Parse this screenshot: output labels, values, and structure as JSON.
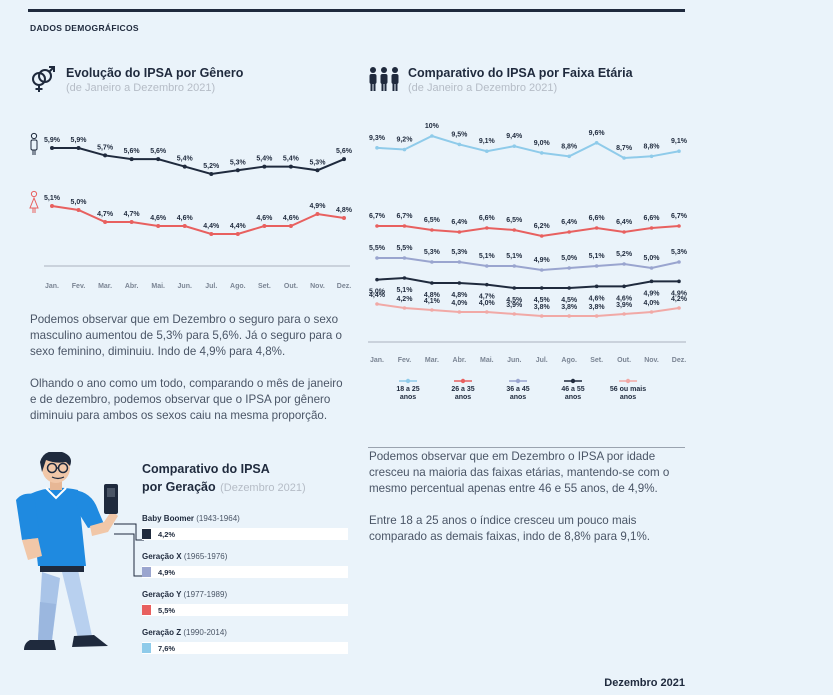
{
  "section_label": "DADOS DEMOGRÁFICOS",
  "footer_date": "Dezembro 2021",
  "gender_panel": {
    "title": "Evolução do IPSA por Gênero",
    "subtitle": "(de Janeiro a Dezembro 2021)",
    "paragraph1": "Podemos observar que em Dezembro o seguro para o sexo masculino aumentou de 5,3% para 5,6%. Já o seguro para o sexo feminino, diminuiu. Indo de 4,9% para 4,8%.",
    "paragraph2": "Olhando o ano como um todo, comparando o mês de janeiro e de dezembro, podemos observar que o IPSA por gênero diminuiu para ambos os sexos caiu na mesma proporção."
  },
  "age_panel": {
    "title": "Comparativo do IPSA por Faixa Etária",
    "subtitle": "(de Janeiro a Dezembro 2021)",
    "paragraph1": "Podemos observar que em Dezembro o IPSA por idade cresceu na maioria das faixas etárias, mantendo-se com o mesmo percentual apenas entre 46 e 55 anos, de 4,9%.",
    "paragraph2": "Entre 18 a 25 anos o índice cresceu um pouco mais comparado as demais faixas, indo de 8,8% para 9,1%."
  },
  "generation_panel": {
    "title_line1": "Comparativo do IPSA",
    "title_line2": "por Geração",
    "subtitle": "(Dezembro 2021)"
  },
  "colors": {
    "male": "#1f2a3d",
    "female": "#e8605f",
    "age_18_25": "#8fcbea",
    "age_26_35": "#e8605f",
    "age_36_45": "#9aa5cf",
    "age_46_55": "#1f2a3d",
    "age_56_plus": "#f1a9a6"
  },
  "chart_data": [
    {
      "type": "line",
      "title": "Evolução do IPSA por Gênero",
      "subtitle": "(de Janeiro a Dezembro 2021)",
      "categories": [
        "Jan.",
        "Fev.",
        "Mar.",
        "Abr.",
        "Mai.",
        "Jun.",
        "Jul.",
        "Ago.",
        "Set.",
        "Out.",
        "Nov.",
        "Dez."
      ],
      "series": [
        {
          "key": "male",
          "icon": "male-person-icon",
          "color": "#1f2a3d",
          "values": [
            5.9,
            5.9,
            5.7,
            5.6,
            5.6,
            5.4,
            5.2,
            5.3,
            5.4,
            5.4,
            5.3,
            5.6
          ],
          "labels": [
            "5,9%",
            "5,9%",
            "5,7%",
            "5,6%",
            "5,6%",
            "5,4%",
            "5,2%",
            "5,3%",
            "5,4%",
            "5,4%",
            "5,3%",
            "5,6%"
          ]
        },
        {
          "key": "female",
          "icon": "female-person-icon",
          "color": "#e8605f",
          "values": [
            5.1,
            5.0,
            4.7,
            4.7,
            4.6,
            4.6,
            4.4,
            4.4,
            4.6,
            4.6,
            4.9,
            4.8
          ],
          "labels": [
            "5,1%",
            "5,0%",
            "4,7%",
            "4,7%",
            "4,6%",
            "4,6%",
            "4,4%",
            "4,4%",
            "4,6%",
            "4,6%",
            "4,9%",
            "4,8%"
          ]
        }
      ],
      "grid": false
    },
    {
      "type": "line",
      "title": "Comparativo do IPSA por Faixa Etária",
      "subtitle": "(de Janeiro a Dezembro 2021)",
      "categories": [
        "Jan.",
        "Fev.",
        "Mar.",
        "Abr.",
        "Mai.",
        "Jun.",
        "Jul.",
        "Ago.",
        "Set.",
        "Out.",
        "Nov.",
        "Dez."
      ],
      "series": [
        {
          "name": "18 a 25 anos",
          "name_line1": "18 a 25",
          "name_line2": "anos",
          "color": "#8fcbea",
          "values": [
            9.3,
            9.2,
            10,
            9.5,
            9.1,
            9.4,
            9.0,
            8.8,
            9.6,
            8.7,
            8.8,
            9.1
          ],
          "labels": [
            "9,3%",
            "9,2%",
            "10%",
            "9,5%",
            "9,1%",
            "9,4%",
            "9,0%",
            "8,8%",
            "9,6%",
            "8,7%",
            "8,8%",
            "9,1%"
          ]
        },
        {
          "name": "26 a 35 anos",
          "name_line1": "26 a 35",
          "name_line2": "anos",
          "color": "#e8605f",
          "values": [
            6.7,
            6.7,
            6.5,
            6.4,
            6.6,
            6.5,
            6.2,
            6.4,
            6.6,
            6.4,
            6.6,
            6.7
          ],
          "labels": [
            "6,7%",
            "6,7%",
            "6,5%",
            "6,4%",
            "6,6%",
            "6,5%",
            "6,2%",
            "6,4%",
            "6,6%",
            "6,4%",
            "6,6%",
            "6,7%"
          ]
        },
        {
          "name": "36 a 45 anos",
          "name_line1": "36 a 45",
          "name_line2": "anos",
          "color": "#9aa5cf",
          "values": [
            5.5,
            5.5,
            5.3,
            5.3,
            5.1,
            5.1,
            4.9,
            5.0,
            5.1,
            5.2,
            5.0,
            5.3
          ],
          "labels": [
            "5,5%",
            "5,5%",
            "5,3%",
            "5,3%",
            "5,1%",
            "5,1%",
            "4,9%",
            "5,0%",
            "5,1%",
            "5,2%",
            "5,0%",
            "5,3%"
          ]
        },
        {
          "name": "46 a 55 anos",
          "name_line1": "46 a 55",
          "name_line2": "anos",
          "color": "#1f2a3d",
          "values": [
            5.0,
            5.1,
            4.8,
            4.8,
            4.7,
            4.5,
            4.5,
            4.5,
            4.6,
            4.6,
            4.9,
            4.9
          ],
          "labels": [
            "5,0%",
            "5,1%",
            "4,8%",
            "4,8%",
            "4,7%",
            "4,5%",
            "4,5%",
            "4,5%",
            "4,6%",
            "4,6%",
            "4,9%",
            "4,9%"
          ]
        },
        {
          "name": "56 ou mais anos",
          "name_line1": "56 ou mais",
          "name_line2": "anos",
          "color": "#f1a9a6",
          "values": [
            4.4,
            4.2,
            4.1,
            4.0,
            4.0,
            3.9,
            3.8,
            3.8,
            3.8,
            3.9,
            4.0,
            4.2
          ],
          "labels": [
            "4,4%",
            "4,2%",
            "4,1%",
            "4,0%",
            "4,0%",
            "3,9%",
            "3,8%",
            "3,8%",
            "3,8%",
            "3,9%",
            "4,0%",
            "4,2%"
          ]
        }
      ],
      "legend": "bottom",
      "grid": false
    },
    {
      "type": "bar",
      "title": "Comparativo do IPSA por Geração",
      "subtitle": "(Dezembro 2021)",
      "categories": [
        "Baby Boomer",
        "Geração X",
        "Geração Y",
        "Geração Z"
      ],
      "ranges": [
        "(1943-1964)",
        "(1965-1976)",
        "(1977-1989)",
        "(1990-2014)"
      ],
      "values": [
        4.2,
        4.9,
        5.5,
        7.6
      ],
      "labels": [
        "4,2%",
        "4,9%",
        "5,5%",
        "7,6%"
      ],
      "colors": [
        "#1f2a3d",
        "#9aa5cf",
        "#e8605f",
        "#8fcbea"
      ]
    }
  ]
}
